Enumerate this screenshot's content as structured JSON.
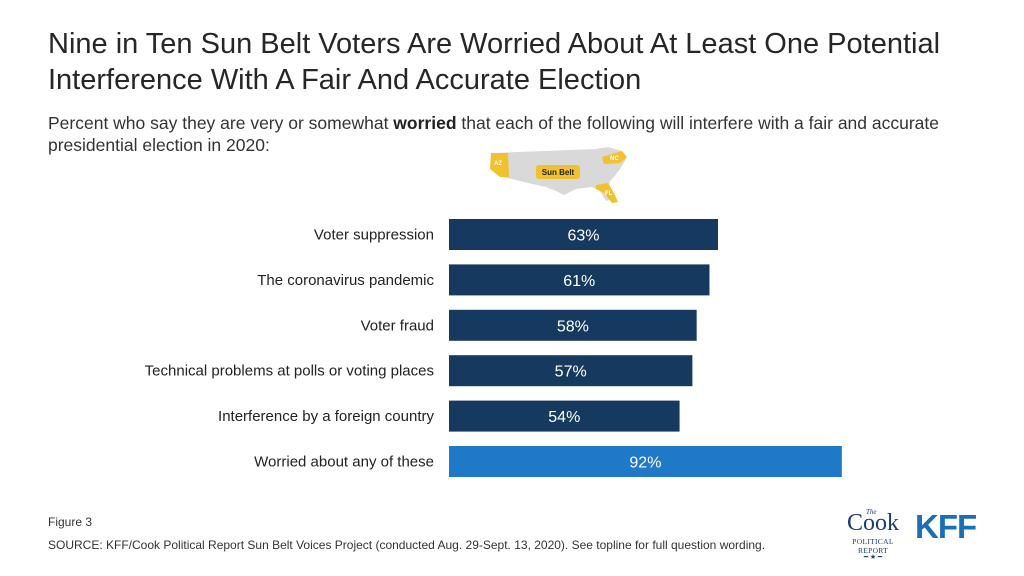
{
  "title": "Nine in Ten Sun Belt Voters Are Worried About At Least One Potential Interference With A Fair And Accurate Election",
  "subtitle": {
    "before": "Percent who say they are very or somewhat ",
    "bold": "worried",
    "after": " that each of the following will interfere with a fair and accurate presidential election in 2020:"
  },
  "map": {
    "label": "Sun Belt",
    "states": [
      "AZ",
      "NC",
      "FL"
    ]
  },
  "chart_data": {
    "type": "bar",
    "orientation": "horizontal",
    "categories": [
      "Voter suppression",
      "The coronavirus pandemic",
      "Voter fraud",
      "Technical problems at polls or voting places",
      "Interference by a foreign country",
      "Worried about any of these"
    ],
    "values": [
      63,
      61,
      58,
      57,
      54,
      92
    ],
    "value_labels": [
      "63%",
      "61%",
      "58%",
      "57%",
      "54%",
      "92%"
    ],
    "xlim": [
      0,
      100
    ],
    "colors": [
      "#163a5f",
      "#163a5f",
      "#163a5f",
      "#163a5f",
      "#163a5f",
      "#1f78c8"
    ]
  },
  "footer": {
    "figure": "Figure 3",
    "source": "SOURCE: KFF/Cook Political Report Sun Belt Voices Project (conducted Aug. 29-Sept. 13, 2020). See topline for full question wording."
  },
  "logos": {
    "cook_the": "The",
    "cook_name": "Cook",
    "cook_sub": "POLITICAL REPORT",
    "kff": "KFF"
  }
}
